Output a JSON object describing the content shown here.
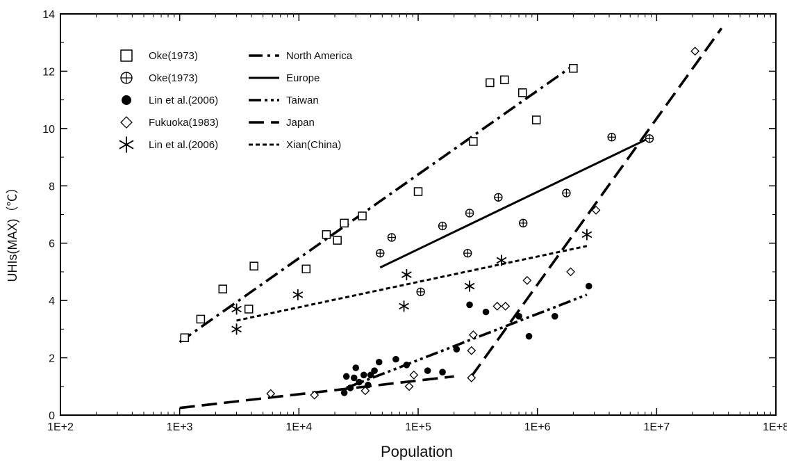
{
  "chart_data": {
    "type": "scatter",
    "title": "",
    "xlabel": "Population",
    "ylabel": "UHIs(MAX)（℃）",
    "xscale": "log",
    "xlim": [
      100,
      100000000
    ],
    "ylim": [
      0,
      14
    ],
    "x_tick_labels": [
      "1E+2",
      "1E+3",
      "1E+4",
      "1E+5",
      "1E+6",
      "1E+7",
      "1E+8"
    ],
    "y_tick_labels": [
      "0",
      "2",
      "4",
      "6",
      "8",
      "10",
      "12",
      "14"
    ],
    "grid": false,
    "legend_position": "top-left",
    "marker_legend": [
      "Oke(1973)",
      "Oke(1973)",
      "Lin et al.(2006)",
      "Fukuoka(1983)",
      "Lin et al.(2006)"
    ],
    "line_legend": [
      "North America",
      "Europe",
      "Taiwan",
      "Japan",
      "Xian(China)"
    ],
    "marker_series": [
      {
        "name": "Oke(1973)",
        "marker": "square",
        "points": [
          [
            1100,
            2.7
          ],
          [
            1500,
            3.35
          ],
          [
            2300,
            4.4
          ],
          [
            3800,
            3.7
          ],
          [
            4200,
            5.2
          ],
          [
            11500,
            5.1
          ],
          [
            17000,
            6.3
          ],
          [
            21000,
            6.1
          ],
          [
            24000,
            6.7
          ],
          [
            34000,
            6.95
          ],
          [
            100000,
            7.8
          ],
          [
            290000,
            9.55
          ],
          [
            400000,
            11.6
          ],
          [
            530000,
            11.7
          ],
          [
            750000,
            11.25
          ],
          [
            980000,
            10.3
          ],
          [
            2000000,
            12.1
          ]
        ]
      },
      {
        "name": "Oke(1973)",
        "marker": "circle-plus",
        "points": [
          [
            48000,
            5.65
          ],
          [
            60000,
            6.2
          ],
          [
            105000,
            4.3
          ],
          [
            160000,
            6.6
          ],
          [
            260000,
            5.65
          ],
          [
            270000,
            7.05
          ],
          [
            470000,
            7.6
          ],
          [
            760000,
            6.7
          ],
          [
            1750000,
            7.75
          ],
          [
            4200000,
            9.7
          ],
          [
            8700000,
            9.65
          ]
        ]
      },
      {
        "name": "Lin et al.(2006)",
        "marker": "filled-circle",
        "points": [
          [
            24000,
            0.78
          ],
          [
            25000,
            1.35
          ],
          [
            27000,
            0.95
          ],
          [
            29000,
            1.3
          ],
          [
            30000,
            1.65
          ],
          [
            32000,
            1.15
          ],
          [
            35000,
            1.4
          ],
          [
            38000,
            1.05
          ],
          [
            40000,
            1.4
          ],
          [
            43000,
            1.55
          ],
          [
            47000,
            1.85
          ],
          [
            65000,
            1.95
          ],
          [
            80000,
            1.75
          ],
          [
            120000,
            1.55
          ],
          [
            160000,
            1.5
          ],
          [
            210000,
            2.3
          ],
          [
            270000,
            3.85
          ],
          [
            370000,
            3.6
          ],
          [
            700000,
            3.45
          ],
          [
            850000,
            2.75
          ],
          [
            1400000,
            3.45
          ],
          [
            2700000,
            4.5
          ]
        ]
      },
      {
        "name": "Fukuoka(1983)",
        "marker": "diamond",
        "points": [
          [
            5800,
            0.75
          ],
          [
            13500,
            0.7
          ],
          [
            36000,
            0.85
          ],
          [
            84000,
            1.0
          ],
          [
            92000,
            1.4
          ],
          [
            280000,
            1.3
          ],
          [
            280000,
            2.25
          ],
          [
            290000,
            2.8
          ],
          [
            460000,
            3.8
          ],
          [
            540000,
            3.8
          ],
          [
            820000,
            4.7
          ],
          [
            1900000,
            5.0
          ],
          [
            3100000,
            7.15
          ],
          [
            21000000,
            12.7
          ]
        ]
      },
      {
        "name": "Lin et al.(2006)",
        "marker": "asterisk",
        "points": [
          [
            3000,
            3.7
          ],
          [
            3000,
            3.0
          ],
          [
            9800,
            4.2
          ],
          [
            76000,
            3.8
          ],
          [
            80000,
            4.9
          ],
          [
            270000,
            4.5
          ],
          [
            500000,
            5.4
          ],
          [
            2600000,
            6.3
          ]
        ]
      }
    ],
    "line_series": [
      {
        "name": "North America",
        "style": "dash-dot",
        "points": [
          [
            1000,
            2.55
          ],
          [
            2000000,
            12.2
          ]
        ]
      },
      {
        "name": "Europe",
        "style": "solid",
        "points": [
          [
            48000,
            5.15
          ],
          [
            9000000,
            9.7
          ]
        ]
      },
      {
        "name": "Taiwan",
        "style": "dash-dot-dot",
        "points": [
          [
            25000,
            0.95
          ],
          [
            2600000,
            4.2
          ]
        ]
      },
      {
        "name": "Japan",
        "style": "long-dash",
        "segments": [
          [
            [
              1000,
              0.25
            ],
            [
              200000,
              1.35
            ]
          ],
          [
            [
              280000,
              1.35
            ],
            [
              35000000,
              13.5
            ]
          ]
        ]
      },
      {
        "name": "Xian(China)",
        "style": "short-dash",
        "points": [
          [
            3000,
            3.3
          ],
          [
            2600000,
            5.9
          ]
        ]
      }
    ]
  }
}
